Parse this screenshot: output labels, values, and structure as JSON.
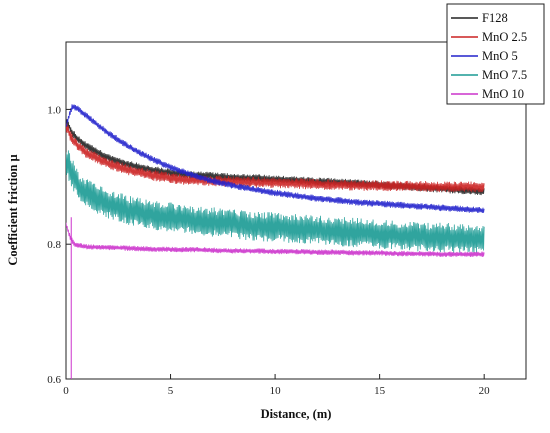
{
  "chart_data": {
    "type": "line",
    "xlabel": "Distance, (m)",
    "ylabel": "Coefficient friction μ",
    "xlim": [
      0,
      22
    ],
    "ylim": [
      0.6,
      1.1
    ],
    "x_ticks": [
      0,
      5,
      10,
      15,
      20
    ],
    "y_ticks": [
      0.6,
      0.8,
      1.0
    ],
    "x_tick_labels": [
      "0",
      "5",
      "10",
      "15",
      "20"
    ],
    "y_tick_labels": [
      "0.6",
      "0.8",
      "1.0"
    ],
    "legend_position": "top-right",
    "grid": false,
    "series": [
      {
        "name": "F128",
        "color": "#222222",
        "noise": 0.006,
        "x": [
          0,
          0.3,
          0.6,
          1,
          2,
          3,
          4,
          5,
          6,
          7,
          8,
          9,
          10,
          11,
          12,
          13,
          14,
          15,
          16,
          17,
          18,
          19,
          20
        ],
        "y": [
          0.985,
          0.965,
          0.955,
          0.945,
          0.928,
          0.918,
          0.911,
          0.906,
          0.903,
          0.901,
          0.899,
          0.898,
          0.896,
          0.895,
          0.893,
          0.892,
          0.89,
          0.888,
          0.886,
          0.884,
          0.882,
          0.88,
          0.878
        ]
      },
      {
        "name": "MnO 2.5",
        "color": "#cc2222",
        "noise": 0.008,
        "x": [
          0,
          0.3,
          0.6,
          1,
          2,
          3,
          4,
          5,
          6,
          7,
          8,
          9,
          10,
          11,
          12,
          13,
          14,
          15,
          16,
          17,
          18,
          19,
          20
        ],
        "y": [
          0.975,
          0.955,
          0.945,
          0.935,
          0.92,
          0.91,
          0.903,
          0.898,
          0.895,
          0.894,
          0.893,
          0.892,
          0.891,
          0.89,
          0.889,
          0.888,
          0.887,
          0.887,
          0.886,
          0.886,
          0.885,
          0.885,
          0.885
        ]
      },
      {
        "name": "MnO 5",
        "color": "#2222cc",
        "noise": 0.005,
        "x": [
          0,
          0.3,
          0.6,
          1,
          2,
          3,
          4,
          5,
          6,
          7,
          8,
          9,
          10,
          11,
          12,
          13,
          14,
          15,
          16,
          17,
          18,
          19,
          20
        ],
        "y": [
          0.975,
          1.005,
          1.0,
          0.99,
          0.965,
          0.945,
          0.928,
          0.914,
          0.903,
          0.894,
          0.887,
          0.881,
          0.876,
          0.872,
          0.868,
          0.865,
          0.862,
          0.86,
          0.858,
          0.856,
          0.854,
          0.852,
          0.85
        ]
      },
      {
        "name": "MnO 7.5",
        "color": "#1a9a94",
        "noise": 0.022,
        "x": [
          0,
          0.3,
          0.6,
          1,
          2,
          3,
          4,
          5,
          6,
          7,
          8,
          9,
          10,
          11,
          12,
          13,
          14,
          15,
          16,
          17,
          18,
          19,
          20
        ],
        "y": [
          0.925,
          0.905,
          0.885,
          0.875,
          0.86,
          0.85,
          0.844,
          0.84,
          0.836,
          0.833,
          0.83,
          0.827,
          0.825,
          0.823,
          0.821,
          0.819,
          0.817,
          0.815,
          0.813,
          0.811,
          0.81,
          0.808,
          0.807
        ]
      },
      {
        "name": "MnO 10",
        "color": "#cc33cc",
        "noise": 0.004,
        "x": [
          0,
          0.2,
          0.4,
          0.6,
          1,
          2,
          3,
          4,
          5,
          6,
          7,
          8,
          9,
          10,
          11,
          12,
          13,
          14,
          15,
          16,
          17,
          18,
          19,
          20
        ],
        "y": [
          0.83,
          0.81,
          0.8,
          0.798,
          0.796,
          0.795,
          0.794,
          0.793,
          0.792,
          0.792,
          0.791,
          0.79,
          0.79,
          0.789,
          0.789,
          0.788,
          0.788,
          0.787,
          0.787,
          0.786,
          0.786,
          0.785,
          0.785,
          0.785
        ]
      }
    ]
  }
}
